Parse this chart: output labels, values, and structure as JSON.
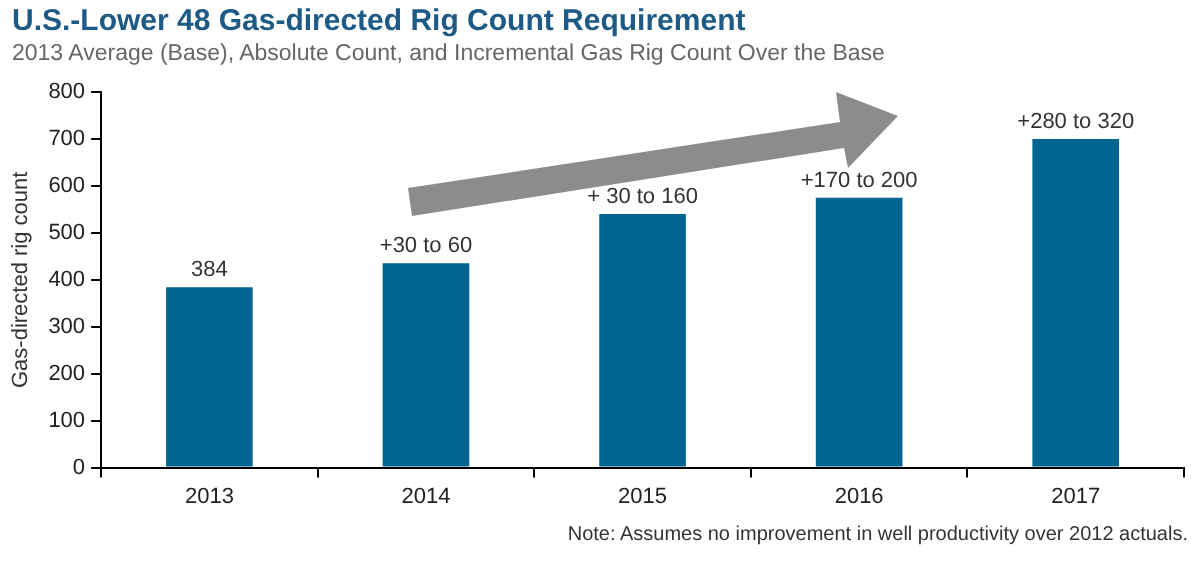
{
  "chart_data": {
    "type": "bar",
    "title": "U.S.-Lower 48 Gas-directed Rig Count Requirement",
    "subtitle": "2013 Average (Base), Absolute Count, and Incremental Gas Rig Count Over the Base",
    "ylabel": "Gas-directed rig count",
    "categories": [
      "2013",
      "2014",
      "2015",
      "2016",
      "2017"
    ],
    "values": [
      384,
      435,
      540,
      575,
      700
    ],
    "color": "#006691",
    "ylim": [
      0,
      800
    ],
    "yticks": [
      0,
      100,
      200,
      300,
      400,
      500,
      600,
      700,
      800
    ],
    "grid": false,
    "legend": false,
    "annotations": [
      {
        "text": "384",
        "x": "2013",
        "y": 384
      },
      {
        "text": "+30 to 60",
        "x": "2014",
        "y": 435
      },
      {
        "text": "+ 30 to 160",
        "x": "2015",
        "y": 540
      },
      {
        "text": "+170 to 200",
        "x": "2016",
        "y": 575
      },
      {
        "text": "+280 to 320",
        "x": "2017",
        "y": 700
      },
      "Note: Assumes no improvement in well productivity over 2012 actuals."
    ]
  }
}
